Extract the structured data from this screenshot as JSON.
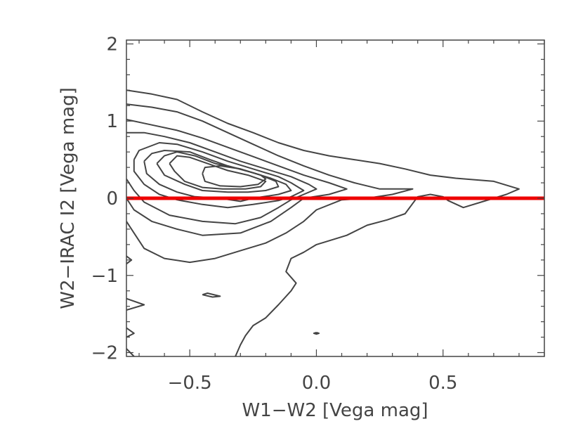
{
  "chart_data": {
    "type": "contour",
    "title": "",
    "xlabel": "W1−W2 [Vega mag]",
    "ylabel": "W2−IRAC I2 [Vega mag]",
    "xlim": [
      -0.75,
      0.9
    ],
    "ylim": [
      -2.05,
      2.05
    ],
    "x_ticks": [
      {
        "value": -0.5,
        "label": "−0.5"
      },
      {
        "value": 0.0,
        "label": "0.0"
      },
      {
        "value": 0.5,
        "label": "0.5"
      }
    ],
    "y_ticks": [
      {
        "value": 2,
        "label": "2"
      },
      {
        "value": 1,
        "label": "1"
      },
      {
        "value": 0,
        "label": "0"
      },
      {
        "value": -1,
        "label": "−1"
      },
      {
        "value": -2,
        "label": "−2"
      }
    ],
    "x_minor_step": 0.1,
    "y_minor_step": 0.2,
    "reference_line": {
      "y": 0,
      "color": "#ee0000"
    },
    "contour_color": "#444444",
    "contours": [
      {
        "name": "level-1",
        "points": [
          [
            -0.75,
            1.4
          ],
          [
            -0.65,
            1.35
          ],
          [
            -0.55,
            1.28
          ],
          [
            -0.45,
            1.12
          ],
          [
            -0.35,
            0.97
          ],
          [
            -0.25,
            0.85
          ],
          [
            -0.15,
            0.72
          ],
          [
            -0.05,
            0.62
          ],
          [
            0.05,
            0.55
          ],
          [
            0.15,
            0.5
          ],
          [
            0.25,
            0.45
          ],
          [
            0.35,
            0.38
          ],
          [
            0.45,
            0.3
          ],
          [
            0.55,
            0.26
          ],
          [
            0.7,
            0.22
          ],
          [
            0.8,
            0.12
          ],
          [
            0.75,
            0.05
          ],
          [
            0.65,
            -0.05
          ],
          [
            0.58,
            -0.12
          ],
          [
            0.52,
            -0.03
          ],
          [
            0.5,
            0.02
          ],
          [
            0.45,
            0.05
          ],
          [
            0.4,
            0.02
          ],
          [
            0.35,
            -0.2
          ],
          [
            0.28,
            -0.28
          ],
          [
            0.2,
            -0.35
          ],
          [
            0.12,
            -0.48
          ],
          [
            0.05,
            -0.55
          ],
          [
            0.0,
            -0.6
          ],
          [
            -0.05,
            -0.7
          ],
          [
            -0.1,
            -0.78
          ],
          [
            -0.12,
            -0.95
          ],
          [
            -0.08,
            -1.1
          ],
          [
            -0.1,
            -1.2
          ],
          [
            -0.15,
            -1.38
          ],
          [
            -0.2,
            -1.55
          ],
          [
            -0.25,
            -1.65
          ],
          [
            -0.28,
            -1.78
          ],
          [
            -0.3,
            -1.9
          ],
          [
            -0.32,
            -2.05
          ]
        ]
      },
      {
        "name": "level-2",
        "points": [
          [
            -0.75,
            1.22
          ],
          [
            -0.65,
            1.18
          ],
          [
            -0.55,
            1.12
          ],
          [
            -0.45,
            1.0
          ],
          [
            -0.35,
            0.85
          ],
          [
            -0.25,
            0.7
          ],
          [
            -0.15,
            0.55
          ],
          [
            -0.05,
            0.42
          ],
          [
            0.05,
            0.3
          ],
          [
            0.15,
            0.2
          ],
          [
            0.25,
            0.12
          ],
          [
            0.38,
            0.12
          ],
          [
            0.3,
            0.05
          ],
          [
            0.2,
            0.0
          ],
          [
            0.1,
            -0.02
          ],
          [
            0.0,
            -0.15
          ],
          [
            -0.05,
            -0.3
          ],
          [
            -0.12,
            -0.45
          ],
          [
            -0.2,
            -0.58
          ],
          [
            -0.3,
            -0.68
          ],
          [
            -0.4,
            -0.78
          ],
          [
            -0.5,
            -0.83
          ],
          [
            -0.6,
            -0.78
          ],
          [
            -0.68,
            -0.65
          ],
          [
            -0.72,
            -0.45
          ],
          [
            -0.75,
            -0.3
          ]
        ]
      },
      {
        "name": "level-3",
        "points": [
          [
            -0.75,
            1.02
          ],
          [
            -0.65,
            0.95
          ],
          [
            -0.55,
            0.88
          ],
          [
            -0.45,
            0.78
          ],
          [
            -0.35,
            0.66
          ],
          [
            -0.25,
            0.54
          ],
          [
            -0.15,
            0.42
          ],
          [
            -0.05,
            0.3
          ],
          [
            0.05,
            0.2
          ],
          [
            0.12,
            0.12
          ],
          [
            0.05,
            0.05
          ],
          [
            -0.05,
            0.0
          ],
          [
            -0.1,
            -0.12
          ],
          [
            -0.18,
            -0.3
          ],
          [
            -0.3,
            -0.45
          ],
          [
            -0.45,
            -0.48
          ],
          [
            -0.55,
            -0.4
          ],
          [
            -0.65,
            -0.3
          ],
          [
            -0.72,
            -0.15
          ],
          [
            -0.75,
            0.0
          ]
        ]
      },
      {
        "name": "level-4",
        "points": [
          [
            -0.75,
            0.85
          ],
          [
            -0.68,
            0.85
          ],
          [
            -0.6,
            0.8
          ],
          [
            -0.5,
            0.72
          ],
          [
            -0.4,
            0.6
          ],
          [
            -0.3,
            0.48
          ],
          [
            -0.2,
            0.38
          ],
          [
            -0.1,
            0.28
          ],
          [
            -0.03,
            0.18
          ],
          [
            0.0,
            0.12
          ],
          [
            -0.05,
            0.05
          ],
          [
            -0.1,
            -0.02
          ],
          [
            -0.15,
            -0.12
          ],
          [
            -0.22,
            -0.25
          ],
          [
            -0.32,
            -0.33
          ],
          [
            -0.45,
            -0.3
          ],
          [
            -0.58,
            -0.22
          ],
          [
            -0.68,
            -0.05
          ],
          [
            -0.72,
            0.1
          ],
          [
            -0.75,
            0.25
          ]
        ]
      },
      {
        "name": "level-5",
        "points": [
          [
            -0.72,
            0.5
          ],
          [
            -0.7,
            0.62
          ],
          [
            -0.62,
            0.72
          ],
          [
            -0.55,
            0.7
          ],
          [
            -0.45,
            0.6
          ],
          [
            -0.35,
            0.48
          ],
          [
            -0.25,
            0.38
          ],
          [
            -0.15,
            0.28
          ],
          [
            -0.1,
            0.2
          ],
          [
            -0.05,
            0.1
          ],
          [
            -0.1,
            0.02
          ],
          [
            -0.15,
            -0.03
          ],
          [
            -0.25,
            -0.08
          ],
          [
            -0.35,
            -0.12
          ],
          [
            -0.45,
            -0.08
          ],
          [
            -0.55,
            -0.02
          ],
          [
            -0.62,
            0.05
          ],
          [
            -0.68,
            0.18
          ],
          [
            -0.72,
            0.35
          ],
          [
            -0.72,
            0.5
          ]
        ]
      },
      {
        "name": "level-6",
        "points": [
          [
            -0.68,
            0.48
          ],
          [
            -0.65,
            0.58
          ],
          [
            -0.6,
            0.62
          ],
          [
            -0.5,
            0.6
          ],
          [
            -0.42,
            0.5
          ],
          [
            -0.35,
            0.42
          ],
          [
            -0.25,
            0.33
          ],
          [
            -0.18,
            0.26
          ],
          [
            -0.12,
            0.18
          ],
          [
            -0.1,
            0.1
          ],
          [
            -0.15,
            0.05
          ],
          [
            -0.25,
            0.0
          ],
          [
            -0.3,
            -0.04
          ],
          [
            -0.38,
            0.0
          ],
          [
            -0.48,
            0.02
          ],
          [
            -0.55,
            0.08
          ],
          [
            -0.62,
            0.18
          ],
          [
            -0.67,
            0.32
          ],
          [
            -0.68,
            0.48
          ]
        ]
      },
      {
        "name": "level-7",
        "points": [
          [
            -0.63,
            0.45
          ],
          [
            -0.6,
            0.55
          ],
          [
            -0.55,
            0.6
          ],
          [
            -0.48,
            0.55
          ],
          [
            -0.4,
            0.45
          ],
          [
            -0.3,
            0.38
          ],
          [
            -0.22,
            0.3
          ],
          [
            -0.16,
            0.22
          ],
          [
            -0.15,
            0.15
          ],
          [
            -0.2,
            0.1
          ],
          [
            -0.27,
            0.08
          ],
          [
            -0.35,
            0.08
          ],
          [
            -0.45,
            0.1
          ],
          [
            -0.52,
            0.18
          ],
          [
            -0.6,
            0.3
          ],
          [
            -0.63,
            0.45
          ]
        ]
      },
      {
        "name": "level-8",
        "points": [
          [
            -0.58,
            0.45
          ],
          [
            -0.55,
            0.55
          ],
          [
            -0.5,
            0.53
          ],
          [
            -0.43,
            0.45
          ],
          [
            -0.35,
            0.36
          ],
          [
            -0.27,
            0.3
          ],
          [
            -0.2,
            0.22
          ],
          [
            -0.22,
            0.15
          ],
          [
            -0.28,
            0.12
          ],
          [
            -0.37,
            0.12
          ],
          [
            -0.45,
            0.14
          ],
          [
            -0.52,
            0.22
          ],
          [
            -0.56,
            0.35
          ],
          [
            -0.58,
            0.45
          ]
        ]
      },
      {
        "name": "level-9",
        "points": [
          [
            -0.45,
            0.32
          ],
          [
            -0.44,
            0.4
          ],
          [
            -0.38,
            0.42
          ],
          [
            -0.3,
            0.38
          ],
          [
            -0.22,
            0.3
          ],
          [
            -0.2,
            0.25
          ],
          [
            -0.23,
            0.18
          ],
          [
            -0.3,
            0.15
          ],
          [
            -0.38,
            0.16
          ],
          [
            -0.44,
            0.22
          ],
          [
            -0.45,
            0.32
          ]
        ]
      },
      {
        "name": "island-1",
        "points": [
          [
            -0.45,
            -1.25
          ],
          [
            -0.41,
            -1.28
          ],
          [
            -0.38,
            -1.27
          ],
          [
            -0.43,
            -1.23
          ],
          [
            -0.45,
            -1.25
          ]
        ]
      },
      {
        "name": "edge-fragment-1",
        "points": [
          [
            -0.75,
            -0.75
          ],
          [
            -0.73,
            -0.8
          ],
          [
            -0.75,
            -0.85
          ]
        ]
      },
      {
        "name": "edge-fragment-2",
        "points": [
          [
            -0.75,
            -1.3
          ],
          [
            -0.68,
            -1.38
          ],
          [
            -0.75,
            -1.45
          ]
        ]
      },
      {
        "name": "edge-fragment-3",
        "points": [
          [
            -0.75,
            -1.68
          ],
          [
            -0.72,
            -1.75
          ],
          [
            -0.75,
            -1.8
          ]
        ]
      },
      {
        "name": "edge-fragment-4",
        "points": [
          [
            -0.75,
            -1.95
          ],
          [
            -0.72,
            -2.05
          ]
        ]
      },
      {
        "name": "dot",
        "points": [
          [
            0.0,
            -1.74
          ],
          [
            0.01,
            -1.75
          ],
          [
            0.0,
            -1.76
          ],
          [
            -0.01,
            -1.75
          ],
          [
            0.0,
            -1.74
          ]
        ]
      }
    ]
  }
}
